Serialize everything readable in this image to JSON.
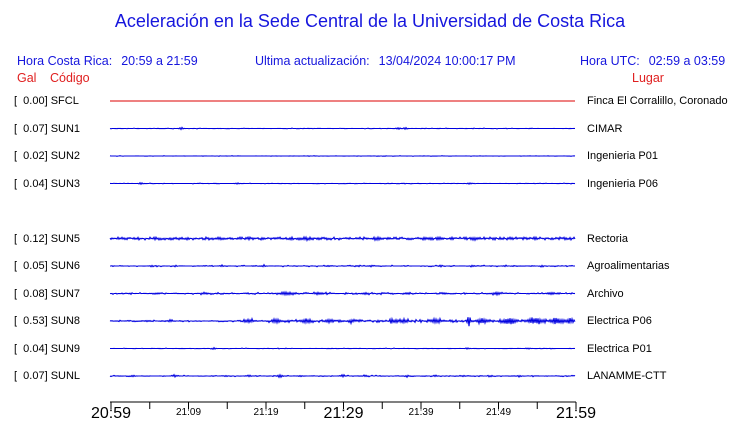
{
  "title": "Aceleración en la Sede Central de la Universidad de Costa Rica",
  "header": {
    "local_time_label": "Hora Costa Rica:",
    "local_time_value": "20:59 a 21:59",
    "update_label": "Ultima actualización:",
    "update_value": "13/04/2024 10:00:17 PM",
    "utc_label": "Hora UTC:",
    "utc_value": "02:59 a 03:59"
  },
  "columns": {
    "gal": "Gal",
    "codigo": "Código",
    "lugar": "Lugar"
  },
  "colors": {
    "header_blue": "#1616dd",
    "label_red": "#e02020",
    "trace_blue": "#0000e0",
    "trace_red": "#dd0000",
    "axis_black": "#000000"
  },
  "chart_data": {
    "type": "line",
    "title": "Aceleración en la Sede Central de la Universidad de Costa Rica",
    "x_axis": {
      "start_label": "20:59",
      "end_label": "21:59",
      "tick_interval_minutes": 5,
      "major_labels": [
        "20:59",
        "21:29",
        "21:59"
      ],
      "minor_labels": [
        "21:09",
        "21:19",
        "21:39",
        "21:49"
      ],
      "tick_label_sequence": [
        {
          "text": "20:59",
          "tick_index": 0,
          "size": "major"
        },
        {
          "text": "21:09",
          "tick_index": 2,
          "size": "minor"
        },
        {
          "text": "21:19",
          "tick_index": 4,
          "size": "minor"
        },
        {
          "text": "21:29",
          "tick_index": 6,
          "size": "major"
        },
        {
          "text": "21:39",
          "tick_index": 8,
          "size": "minor"
        },
        {
          "text": "21:49",
          "tick_index": 10,
          "size": "minor"
        },
        {
          "text": "21:59",
          "tick_index": 12,
          "size": "major"
        }
      ],
      "num_ticks": 13
    },
    "units": "Gal",
    "channels": [
      {
        "slot": 0,
        "gal": "0.00",
        "code": "SFCL",
        "location": "Finca El Corralillo, Coronado",
        "color": "#dd0000",
        "noise_segments": [
          {
            "from": 0,
            "to": 1,
            "amp": 0,
            "exp": 1
          }
        ],
        "events": []
      },
      {
        "slot": 1,
        "gal": "0.07",
        "code": "SUN1",
        "location": "CIMAR",
        "color": "#0000e0",
        "noise_segments": [
          {
            "from": 0,
            "to": 1,
            "amp": 0.45,
            "exp": 9
          }
        ],
        "events": [
          {
            "p": 0.153,
            "a": 1.1,
            "w": 2
          },
          {
            "p": 0.62,
            "a": 0.8,
            "w": 2
          },
          {
            "p": 0.635,
            "a": 1.1,
            "w": 2
          }
        ]
      },
      {
        "slot": 2,
        "gal": "0.02",
        "code": "SUN2",
        "location": "Ingenieria P01",
        "color": "#0000e0",
        "noise_segments": [
          {
            "from": 0,
            "to": 1,
            "amp": 0.35,
            "exp": 10
          }
        ],
        "events": []
      },
      {
        "slot": 3,
        "gal": "0.04",
        "code": "SUN3",
        "location": "Ingenieria P06",
        "color": "#0000e0",
        "noise_segments": [
          {
            "from": 0,
            "to": 1,
            "amp": 0.4,
            "exp": 9
          }
        ],
        "events": [
          {
            "p": 0.067,
            "a": 1.2,
            "w": 2
          },
          {
            "p": 0.274,
            "a": 0.7,
            "w": 2
          },
          {
            "p": 0.775,
            "a": 0.7,
            "w": 2
          }
        ]
      },
      {
        "slot": 5,
        "gal": "0.12",
        "code": "SUN5",
        "location": "Rectoria",
        "color": "#0000e0",
        "noise_segments": [
          {
            "from": 0,
            "to": 1,
            "amp": 1.4,
            "exp": 1.2
          }
        ],
        "events": [
          {
            "p": 0.42,
            "a": 1.0,
            "w": 3
          },
          {
            "p": 0.57,
            "a": 0.9,
            "w": 3
          },
          {
            "p": 0.78,
            "a": 0.9,
            "w": 3
          }
        ]
      },
      {
        "slot": 6,
        "gal": "0.05",
        "code": "SUN6",
        "location": "Agroalimentarias",
        "color": "#0000e0",
        "noise_segments": [
          {
            "from": 0,
            "to": 1,
            "amp": 0.8,
            "exp": 6
          }
        ],
        "events": [
          {
            "p": 0.09,
            "a": 0.9,
            "w": 2
          },
          {
            "p": 0.24,
            "a": 0.9,
            "w": 2
          },
          {
            "p": 0.33,
            "a": 0.7,
            "w": 2
          },
          {
            "p": 0.47,
            "a": 0.8,
            "w": 2
          },
          {
            "p": 0.56,
            "a": 0.7,
            "w": 2
          },
          {
            "p": 0.71,
            "a": 0.9,
            "w": 2
          },
          {
            "p": 0.78,
            "a": 0.8,
            "w": 2
          },
          {
            "p": 0.85,
            "a": 0.7,
            "w": 2
          },
          {
            "p": 0.93,
            "a": 0.8,
            "w": 2
          }
        ]
      },
      {
        "slot": 7,
        "gal": "0.08",
        "code": "SUN7",
        "location": "Archivo",
        "color": "#0000e0",
        "noise_segments": [
          {
            "from": 0,
            "to": 1,
            "amp": 1.0,
            "exp": 4
          }
        ],
        "events": [
          {
            "p": 0.1,
            "a": 0.8,
            "w": 3
          },
          {
            "p": 0.2,
            "a": 0.8,
            "w": 3
          },
          {
            "p": 0.38,
            "a": 1.4,
            "w": 8
          },
          {
            "p": 0.45,
            "a": 1.3,
            "w": 5
          },
          {
            "p": 0.55,
            "a": 1.0,
            "w": 3
          },
          {
            "p": 0.64,
            "a": 1.0,
            "w": 3
          },
          {
            "p": 0.72,
            "a": 0.9,
            "w": 3
          },
          {
            "p": 0.83,
            "a": 1.3,
            "w": 5
          },
          {
            "p": 0.95,
            "a": 1.2,
            "w": 4
          }
        ]
      },
      {
        "slot": 8,
        "gal": "0.53",
        "code": "SUN8",
        "location": "Electrica P06",
        "color": "#0000e0",
        "noise_segments": [
          {
            "from": 0,
            "to": 0.28,
            "amp": 0.8,
            "exp": 4
          },
          {
            "from": 0.28,
            "to": 1,
            "amp": 1.4,
            "exp": 2
          }
        ],
        "events": [
          {
            "p": 0.08,
            "a": 0.8,
            "w": 3
          },
          {
            "p": 0.13,
            "a": 0.9,
            "w": 3
          },
          {
            "p": 0.3,
            "a": 1.3,
            "w": 5
          },
          {
            "p": 0.36,
            "a": 1.4,
            "w": 5
          },
          {
            "p": 0.42,
            "a": 1.6,
            "w": 6
          },
          {
            "p": 0.47,
            "a": 1.4,
            "w": 4
          },
          {
            "p": 0.52,
            "a": 1.2,
            "w": 4
          },
          {
            "p": 0.605,
            "a": 2.2,
            "w": 2
          },
          {
            "p": 0.63,
            "a": 1.6,
            "w": 5
          },
          {
            "p": 0.7,
            "a": 2.0,
            "w": 6
          },
          {
            "p": 0.772,
            "a": 5.0,
            "w": 1.6
          },
          {
            "p": 0.8,
            "a": 2.2,
            "w": 6
          },
          {
            "p": 0.86,
            "a": 2.6,
            "w": 7
          },
          {
            "p": 0.915,
            "a": 3.0,
            "w": 7
          },
          {
            "p": 0.96,
            "a": 2.4,
            "w": 6
          },
          {
            "p": 0.99,
            "a": 2.2,
            "w": 4
          }
        ]
      },
      {
        "slot": 9,
        "gal": "0.04",
        "code": "SUN9",
        "location": "Electrica P01",
        "color": "#0000e0",
        "noise_segments": [
          {
            "from": 0,
            "to": 1,
            "amp": 0.4,
            "exp": 9
          }
        ],
        "events": [
          {
            "p": 0.224,
            "a": 0.9,
            "w": 2
          },
          {
            "p": 0.77,
            "a": 0.7,
            "w": 2
          },
          {
            "p": 0.9,
            "a": 0.6,
            "w": 2
          }
        ]
      },
      {
        "slot": 10,
        "gal": "0.07",
        "code": "SUNL",
        "location": "LANAMME-CTT",
        "color": "#0000e0",
        "noise_segments": [
          {
            "from": 0,
            "to": 1,
            "amp": 0.7,
            "exp": 6
          }
        ],
        "events": [
          {
            "p": 0.05,
            "a": 0.8,
            "w": 2
          },
          {
            "p": 0.14,
            "a": 0.9,
            "w": 2
          },
          {
            "p": 0.25,
            "a": 0.8,
            "w": 2
          },
          {
            "p": 0.3,
            "a": 1.0,
            "w": 2
          },
          {
            "p": 0.365,
            "a": 1.4,
            "w": 3
          },
          {
            "p": 0.41,
            "a": 0.9,
            "w": 2
          },
          {
            "p": 0.5,
            "a": 1.0,
            "w": 2
          },
          {
            "p": 0.55,
            "a": 0.8,
            "w": 2
          },
          {
            "p": 0.64,
            "a": 0.8,
            "w": 2
          },
          {
            "p": 0.7,
            "a": 0.9,
            "w": 2
          },
          {
            "p": 0.76,
            "a": 0.8,
            "w": 2
          },
          {
            "p": 0.82,
            "a": 0.7,
            "w": 2
          },
          {
            "p": 0.88,
            "a": 0.8,
            "w": 2
          }
        ]
      }
    ]
  }
}
